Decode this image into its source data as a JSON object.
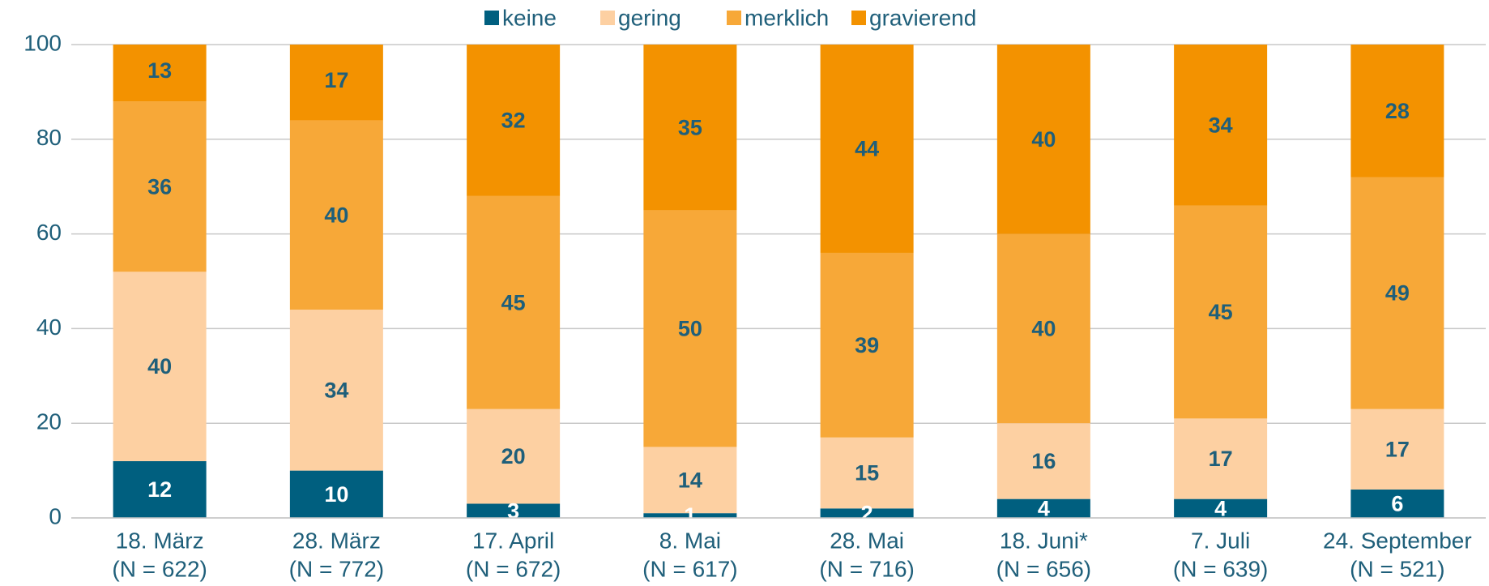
{
  "chart_data": {
    "type": "stacked_bar",
    "categories": [
      "18. März",
      "28. März",
      "17. April",
      "8. Mai",
      "28. Mai",
      "18. Juni*",
      "7. Juli",
      "24. September"
    ],
    "category_notes": [
      "(N = 622)",
      "(N = 772)",
      "(N = 672)",
      "(N = 617)",
      "(N = 716)",
      "(N = 656)",
      "(N = 639)",
      "(N = 521)"
    ],
    "series": [
      {
        "name": "keine",
        "color": "#005f7f",
        "label_color": "#ffffff",
        "values": [
          12,
          10,
          3,
          1,
          2,
          4,
          4,
          6
        ]
      },
      {
        "name": "gering",
        "color": "#fdd0a2",
        "label_color": "#1f5f7a",
        "values": [
          40,
          34,
          20,
          14,
          15,
          16,
          17,
          17
        ]
      },
      {
        "name": "merklich",
        "color": "#f7a838",
        "label_color": "#1f5f7a",
        "values": [
          36,
          40,
          45,
          50,
          39,
          40,
          45,
          49
        ]
      },
      {
        "name": "gravierend",
        "color": "#f39200",
        "label_color": "#1f5f7a",
        "values": [
          13,
          17,
          32,
          35,
          44,
          40,
          34,
          28
        ]
      }
    ],
    "ylim": [
      0,
      100
    ],
    "yticks": [
      0,
      20,
      40,
      60,
      80,
      100
    ],
    "grid": true,
    "legend": "top"
  }
}
